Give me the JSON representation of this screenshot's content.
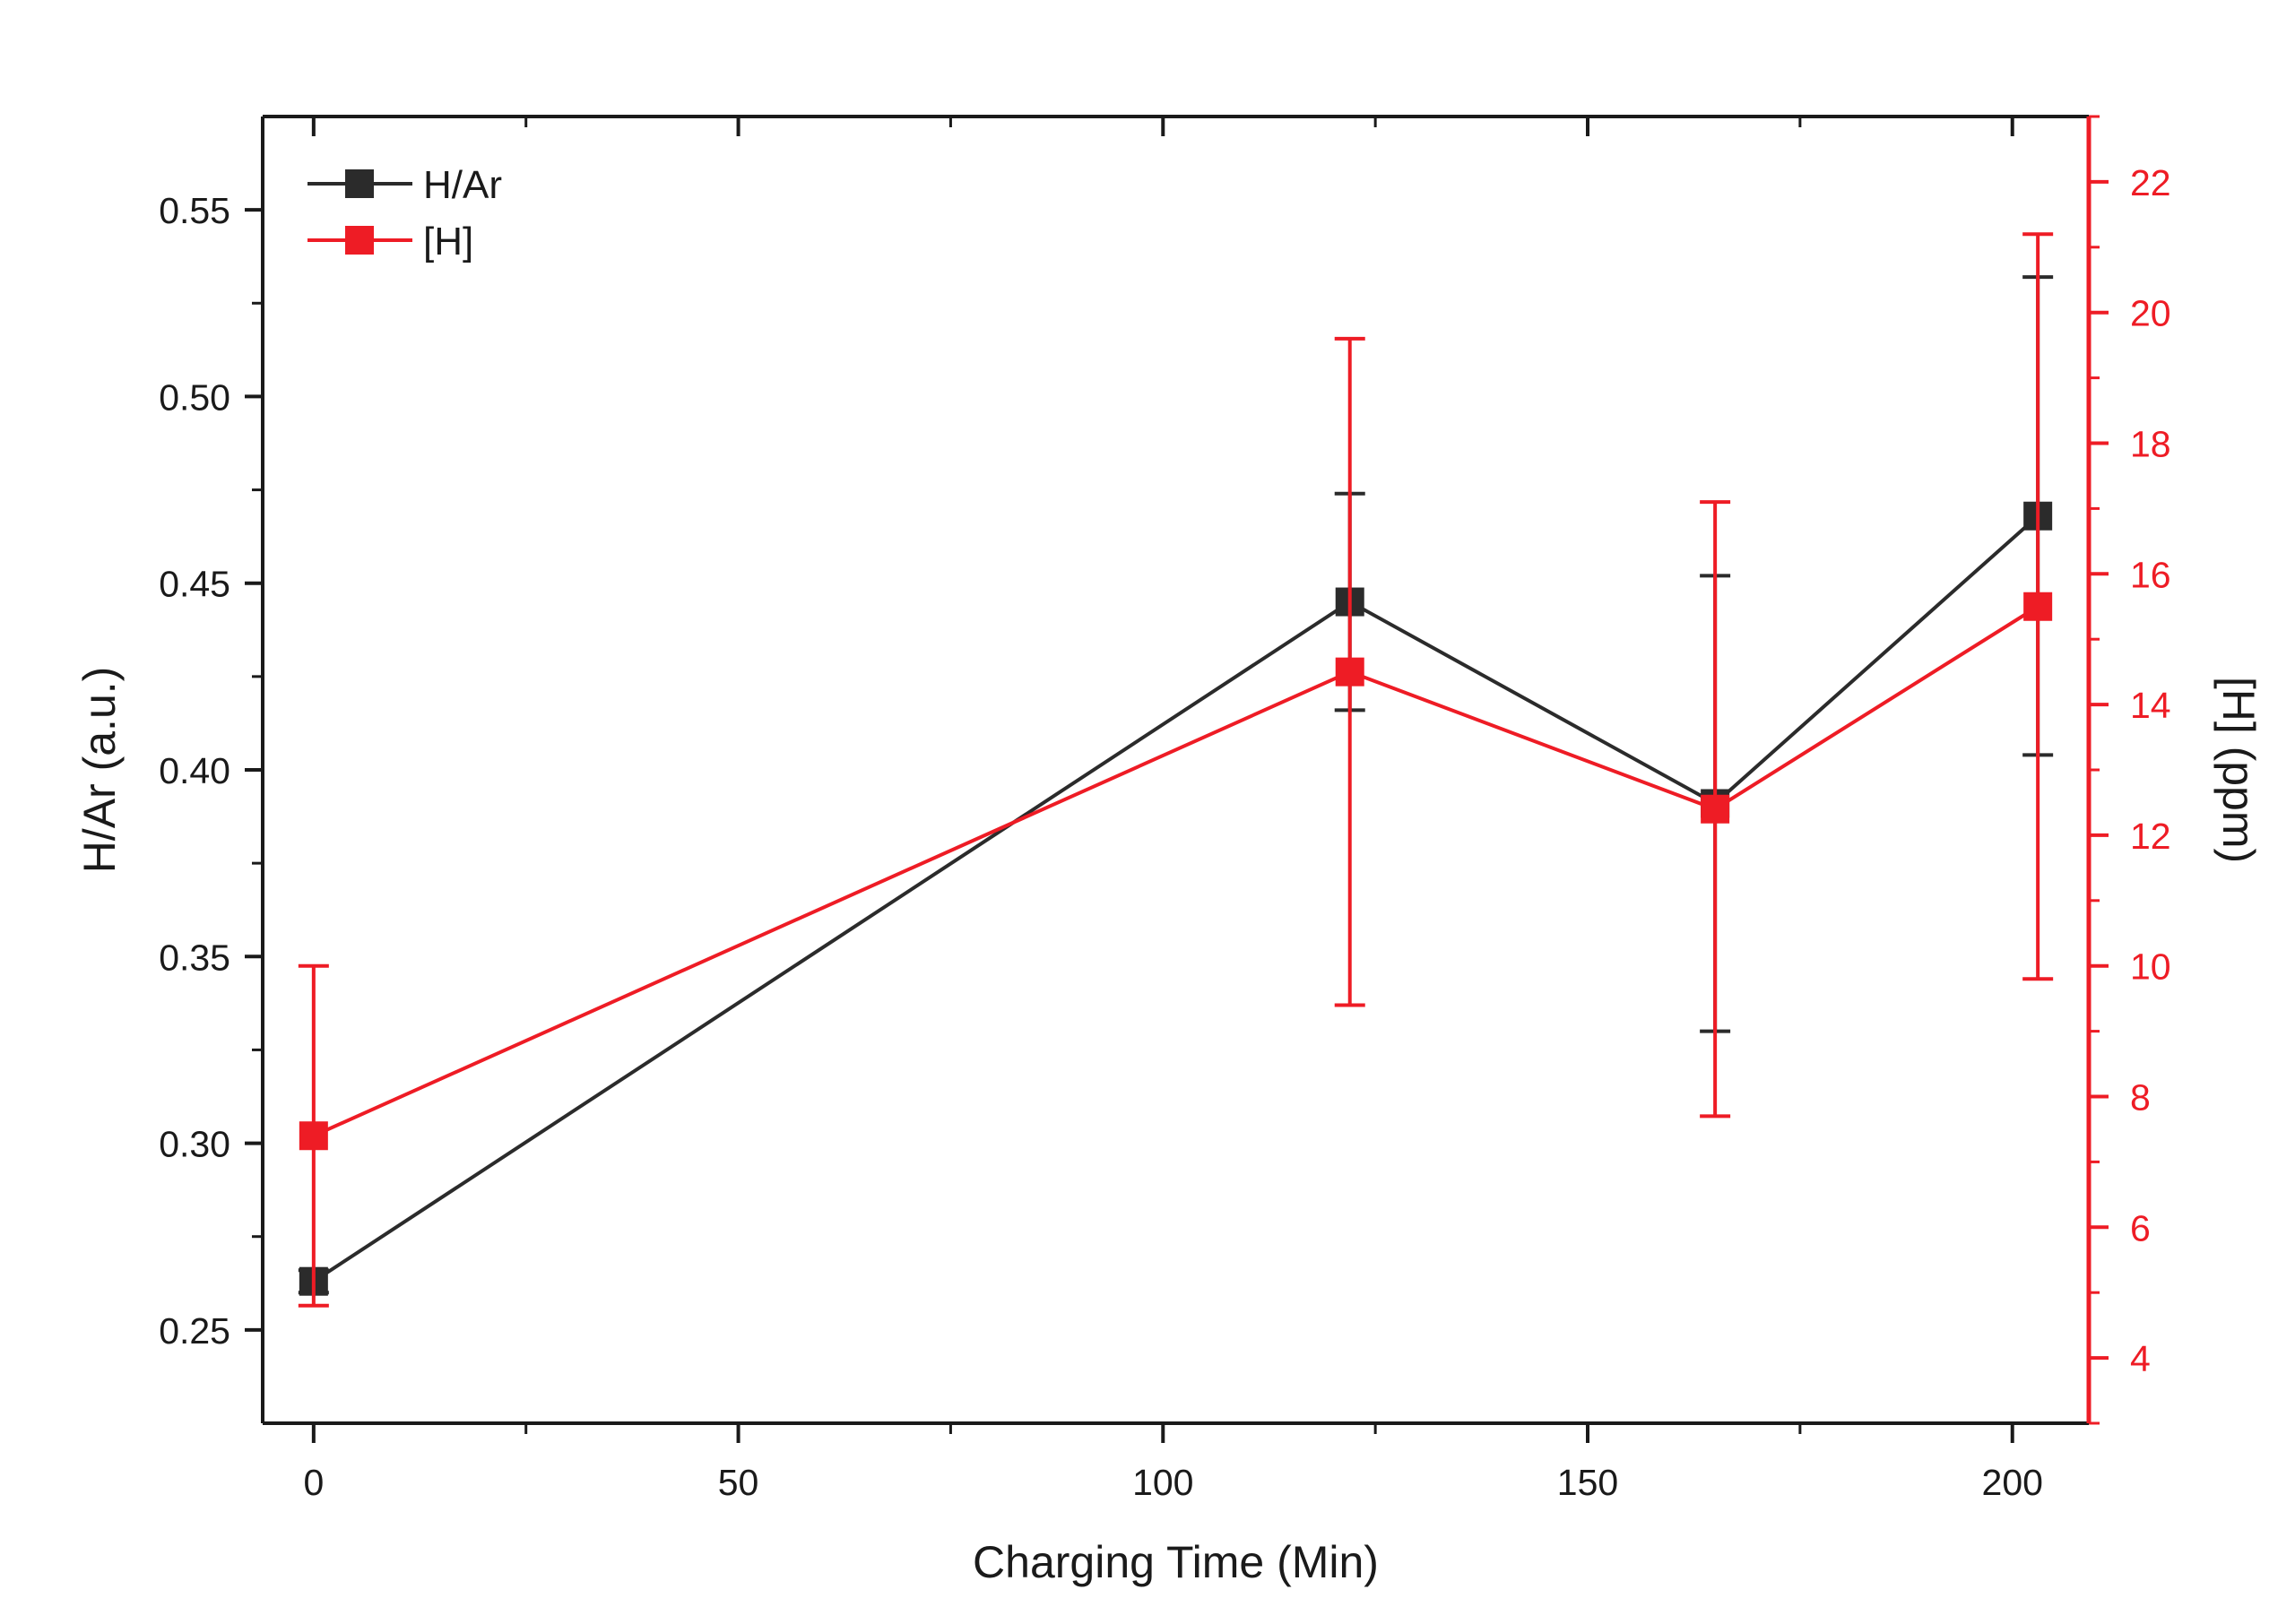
{
  "chart_data": {
    "type": "line",
    "title": "",
    "xlabel": "Charging Time (Min)",
    "ylabel": "H/Ar (a.u.)",
    "y2label": "[H] (ppm)",
    "xlim": [
      -6,
      209
    ],
    "ylim": [
      0.225,
      0.575
    ],
    "y2lim": [
      3,
      23
    ],
    "xticks": [
      0,
      50,
      100,
      150,
      200
    ],
    "xtick_labels": [
      "0",
      "50",
      "100",
      "150",
      "200"
    ],
    "yticks": [
      0.25,
      0.3,
      0.35,
      0.4,
      0.45,
      0.5,
      0.55
    ],
    "ytick_labels": [
      "0.25",
      "0.30",
      "0.35",
      "0.40",
      "0.45",
      "0.50",
      "0.55"
    ],
    "y2ticks": [
      4,
      6,
      8,
      10,
      12,
      14,
      16,
      18,
      20,
      22
    ],
    "y2tick_labels": [
      "4",
      "6",
      "8",
      "10",
      "12",
      "14",
      "16",
      "18",
      "20",
      "22"
    ],
    "grid": false,
    "legend_position": "top-left",
    "x": [
      0,
      122,
      165,
      203
    ],
    "series": [
      {
        "name": "H/Ar",
        "axis": "left",
        "color": "#2b2b2b",
        "marker": "square",
        "values": [
          0.263,
          0.445,
          0.391,
          0.468
        ],
        "errors": [
          0.003,
          0.029,
          0.061,
          0.064
        ]
      },
      {
        "name": "[H]",
        "axis": "right",
        "color": "#ee1c25",
        "marker": "square",
        "values": [
          7.4,
          14.5,
          12.4,
          15.5
        ],
        "errors": [
          2.6,
          5.1,
          4.7,
          5.7
        ]
      }
    ],
    "colors": {
      "left_axis": "#1a1a1a",
      "right_axis": "#ee1c25"
    }
  }
}
